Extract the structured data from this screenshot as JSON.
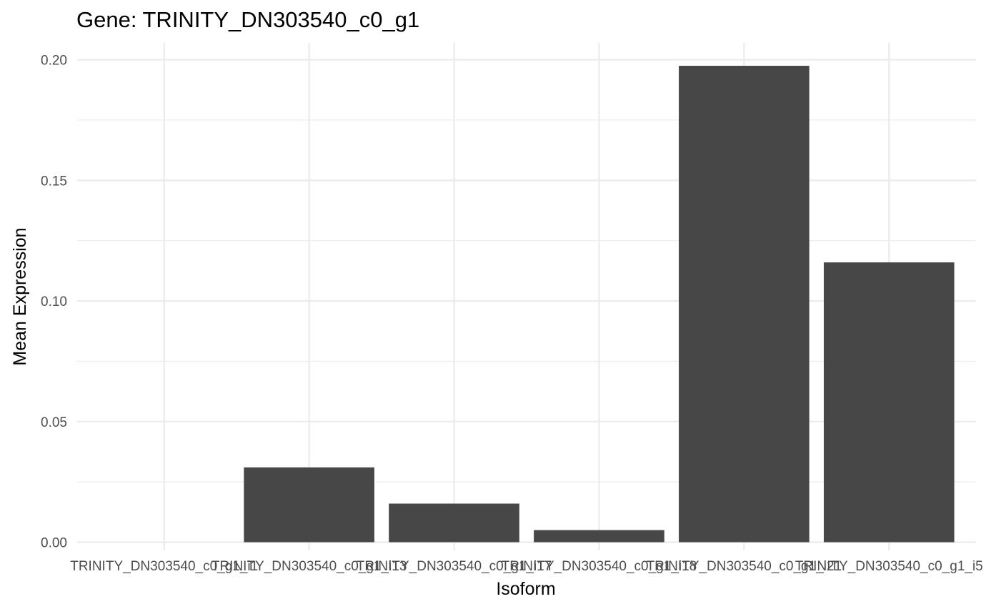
{
  "chart_data": {
    "type": "bar",
    "title": "Gene: TRINITY_DN303540_c0_g1",
    "xlabel": "Isoform",
    "ylabel": "Mean Expression",
    "categories": [
      "TRINITY_DN303540_c0_g1_i1",
      "TRINITY_DN303540_c0_g1_i13",
      "TRINITY_DN303540_c0_g1_i17",
      "TRINITY_DN303540_c0_g1_i18",
      "TRINITY_DN303540_c0_g1_i21",
      "TRINITY_DN303540_c0_g1_i5"
    ],
    "values": [
      0.0,
      0.031,
      0.016,
      0.005,
      0.1975,
      0.116
    ],
    "ylim": [
      -0.0034,
      0.207
    ],
    "yticks": [
      0.0,
      0.05,
      0.1,
      0.15,
      0.2
    ],
    "ytick_labels": [
      "0.00",
      "0.05",
      "0.10",
      "0.15",
      "0.20"
    ],
    "grid": true,
    "legend": "none",
    "bar_color": "#474747",
    "grid_color": "#ebebeb"
  }
}
